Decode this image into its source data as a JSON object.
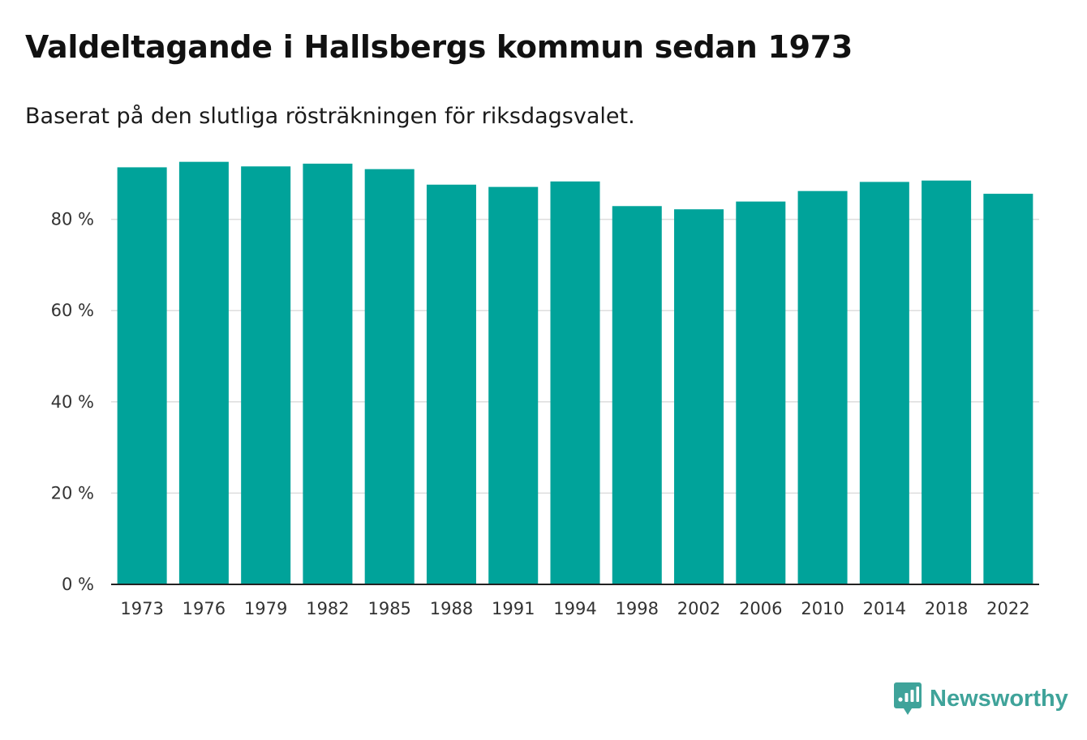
{
  "title": "Valdeltagande i Hallsbergs kommun sedan 1973",
  "subtitle": "Baserat på den slutliga rösträkningen för riksdagsvalet.",
  "brand": "Newsworthy",
  "colors": {
    "bar": "#00a39a",
    "grid": "#dddddd",
    "axis": "#222222",
    "brand": "#3fa39a"
  },
  "chart_data": {
    "type": "bar",
    "title": "Valdeltagande i Hallsbergs kommun sedan 1973",
    "subtitle": "Baserat på den slutliga rösträkningen för riksdagsvalet.",
    "xlabel": "",
    "ylabel": "",
    "categories": [
      "1973",
      "1976",
      "1979",
      "1982",
      "1985",
      "1988",
      "1991",
      "1994",
      "1998",
      "2002",
      "2006",
      "2010",
      "2014",
      "2018",
      "2022"
    ],
    "values": [
      91.4,
      92.6,
      91.6,
      92.2,
      91.0,
      87.6,
      87.1,
      88.3,
      82.9,
      82.2,
      83.9,
      86.2,
      88.2,
      88.5,
      85.6
    ],
    "ylim": [
      0,
      100
    ],
    "yticks": [
      0,
      20,
      40,
      60,
      80
    ],
    "ytick_labels": [
      "0 %",
      "20 %",
      "40 %",
      "60 %",
      "80 %"
    ],
    "grid": true,
    "legend": "none"
  }
}
